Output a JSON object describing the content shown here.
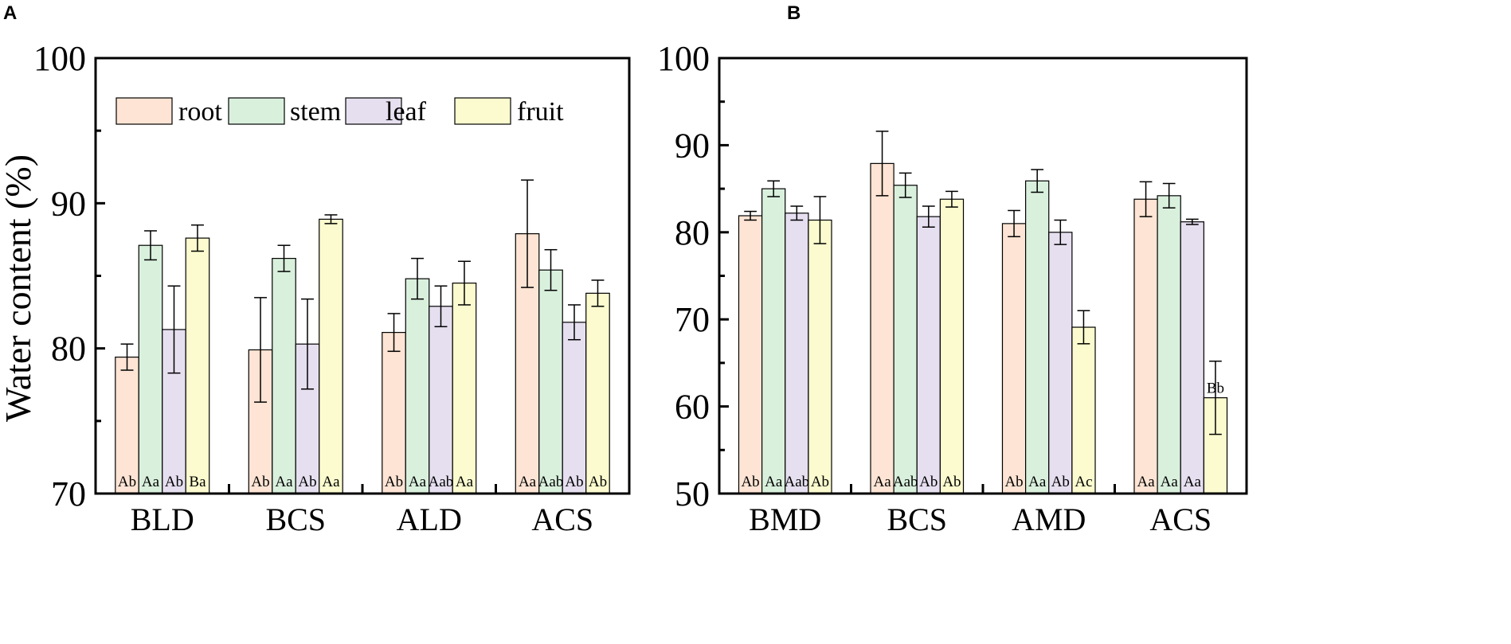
{
  "colors": {
    "root": "#fde4d4",
    "stem": "#d9f0dd",
    "leaf": "#e6dff0",
    "fruit": "#fbfbcf",
    "stroke": "#000000"
  },
  "ylabel": "Water content (%)",
  "legend": [
    "root",
    "stem",
    "leaf",
    "fruit"
  ],
  "chart_data": [
    {
      "type": "bar",
      "panel": "A",
      "title": "",
      "xlabel": "",
      "ylabel": "Water content (%)",
      "ylim": [
        70,
        100
      ],
      "yticks": [
        70,
        80,
        90,
        100
      ],
      "ytick_labels": [
        "70",
        "80",
        "90",
        "100"
      ],
      "legend_position": "top-left",
      "categories": [
        "BLD",
        "BCS",
        "ALD",
        "ACS"
      ],
      "series": [
        {
          "name": "root",
          "values": [
            79.4,
            79.9,
            81.1,
            87.9
          ],
          "errors": [
            0.9,
            3.6,
            1.3,
            3.7
          ],
          "labels": [
            "Ab",
            "Ab",
            "Ab",
            "Aa"
          ]
        },
        {
          "name": "stem",
          "values": [
            87.1,
            86.2,
            84.8,
            85.4
          ],
          "errors": [
            1.0,
            0.9,
            1.4,
            1.4
          ],
          "labels": [
            "Aa",
            "Aa",
            "Aa",
            "Aab"
          ]
        },
        {
          "name": "leaf",
          "values": [
            81.3,
            80.3,
            82.9,
            81.8
          ],
          "errors": [
            3.0,
            3.1,
            1.4,
            1.2
          ],
          "labels": [
            "Ab",
            "Ab",
            "Aab",
            "Ab"
          ]
        },
        {
          "name": "fruit",
          "values": [
            87.6,
            88.9,
            84.5,
            83.8
          ],
          "errors": [
            0.9,
            0.3,
            1.5,
            0.9
          ],
          "labels": [
            "Ba",
            "Aa",
            "Aa",
            "Ab"
          ]
        }
      ]
    },
    {
      "type": "bar",
      "panel": "B",
      "title": "",
      "xlabel": "",
      "ylabel": "",
      "ylim": [
        50,
        100
      ],
      "yticks": [
        50,
        60,
        70,
        80,
        90,
        100
      ],
      "ytick_labels": [
        "50",
        "60",
        "70",
        "80",
        "90",
        "100"
      ],
      "categories": [
        "BMD",
        "BCS",
        "AMD",
        "ACS"
      ],
      "series": [
        {
          "name": "root",
          "values": [
            81.9,
            87.9,
            81.0,
            83.8
          ],
          "errors": [
            0.5,
            3.7,
            1.5,
            2.0
          ],
          "labels": [
            "Ab",
            "Aa",
            "Ab",
            "Aa"
          ]
        },
        {
          "name": "stem",
          "values": [
            85.0,
            85.4,
            85.9,
            84.2
          ],
          "errors": [
            0.9,
            1.4,
            1.3,
            1.4
          ],
          "labels": [
            "Aa",
            "Aab",
            "Aa",
            "Aa"
          ]
        },
        {
          "name": "leaf",
          "values": [
            82.2,
            81.8,
            80.0,
            81.2
          ],
          "errors": [
            0.8,
            1.2,
            1.4,
            0.3
          ],
          "labels": [
            "Aab",
            "Ab",
            "Ab",
            "Aa"
          ]
        },
        {
          "name": "fruit",
          "values": [
            81.4,
            83.8,
            69.1,
            61.0
          ],
          "errors": [
            2.7,
            0.9,
            1.9,
            4.2
          ],
          "labels": [
            "Ab",
            "Ab",
            "Ac",
            "Bb"
          ]
        }
      ]
    }
  ]
}
